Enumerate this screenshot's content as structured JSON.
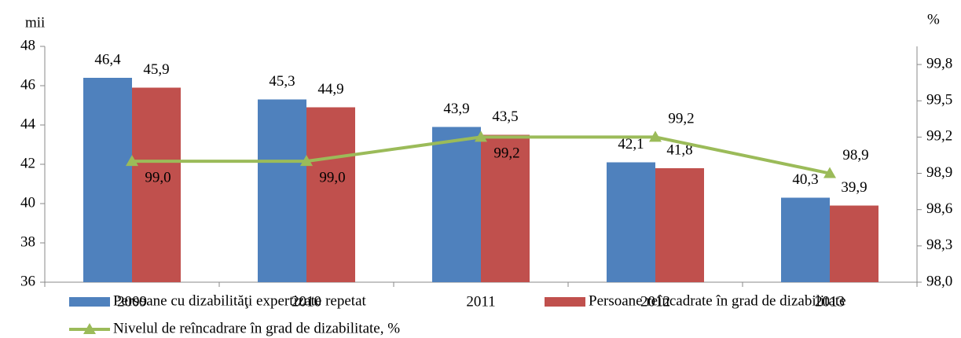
{
  "chart_data": {
    "type": "bar",
    "y_label": "mii",
    "y2_label": "%",
    "categories": [
      "2009",
      "2010",
      "2011",
      "2012",
      "2013"
    ],
    "series": [
      {
        "name": "Persoane cu dizabilităţi expertizate repetat",
        "color": "#4f81bd",
        "values": [
          46.4,
          45.3,
          43.9,
          42.1,
          40.3
        ],
        "value_labels": [
          "46,4",
          "45,3",
          "43,9",
          "42,1",
          "40,3"
        ]
      },
      {
        "name": "Persoane reîncadrate în grad de dizabilitate",
        "color": "#c0504d",
        "values": [
          45.9,
          44.9,
          43.5,
          41.8,
          39.9
        ],
        "value_labels": [
          "45,9",
          "44,9",
          "43,5",
          "41,8",
          "39,9"
        ]
      },
      {
        "name": "Nivelul de reîncadrare în grad de dizabilitate, %",
        "color": "#9bbb59",
        "type": "line",
        "axis": "y2",
        "values": [
          99.0,
          99.0,
          99.2,
          99.2,
          98.9
        ],
        "value_labels": [
          "99,0",
          "99,0",
          "99,2",
          "99,2",
          "98,9"
        ]
      }
    ],
    "ylim": [
      36,
      48
    ],
    "yticks": [
      36,
      38,
      40,
      42,
      44,
      46,
      48
    ],
    "y2lim": [
      98.0,
      99.95
    ],
    "y2ticks": [
      {
        "value": 98.0,
        "label": "98,0"
      },
      {
        "value": 98.3,
        "label": "98,3"
      },
      {
        "value": 98.6,
        "label": "98,6"
      },
      {
        "value": 98.9,
        "label": "98,9"
      },
      {
        "value": 99.2,
        "label": "99,2"
      },
      {
        "value": 99.5,
        "label": "99,5"
      },
      {
        "value": 99.8,
        "label": "99,8"
      }
    ]
  }
}
